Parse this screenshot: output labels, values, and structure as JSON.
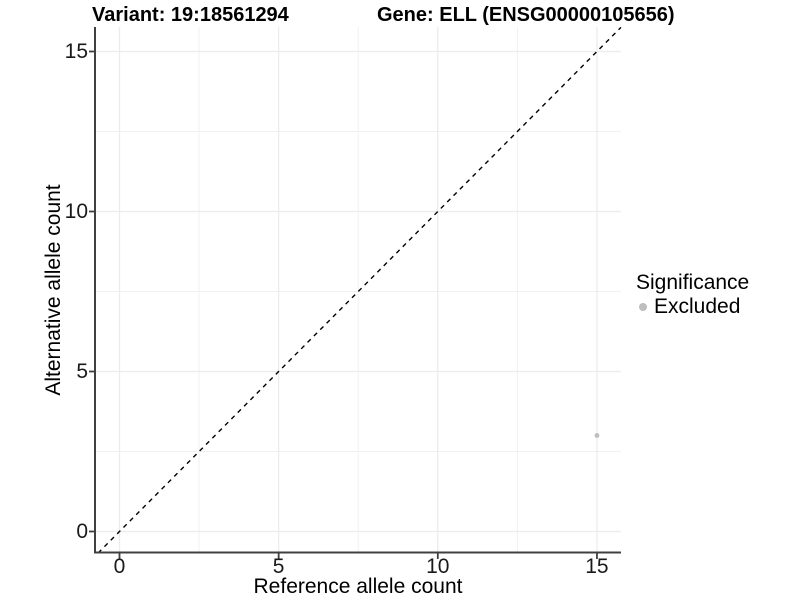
{
  "title": {
    "variant": "Variant: 19:18561294",
    "gene": "Gene: ELL (ENSG00000105656)"
  },
  "axes": {
    "x": {
      "label": "Reference allele count",
      "ticks": [
        0,
        5,
        10,
        15
      ],
      "tick_labels": [
        "0",
        "5",
        "10",
        "15"
      ],
      "minor_ticks": [
        2.5,
        7.5,
        12.5
      ]
    },
    "y": {
      "label": "Alternative allele count",
      "ticks": [
        0,
        5,
        10,
        15
      ],
      "tick_labels": [
        "0",
        "5",
        "10",
        "15"
      ],
      "minor_ticks": [
        2.5,
        7.5,
        12.5
      ]
    }
  },
  "legend": {
    "title": "Significance",
    "items": [
      {
        "label": "Excluded",
        "color": "#bebebe"
      }
    ]
  },
  "colors": {
    "axis_line": "#404040",
    "tick_mark": "#404040",
    "grid_major": "#ececec",
    "grid_minor": "#f1f1f1",
    "dashed_line": "#000000",
    "point": "#bebebe"
  },
  "chart_data": {
    "type": "scatter",
    "title": "Variant: 19:18561294   Gene: ELL (ENSG00000105656)",
    "xlabel": "Reference allele count",
    "ylabel": "Alternative allele count",
    "xlim": [
      -0.75,
      15.75
    ],
    "ylim": [
      -0.75,
      15.75
    ],
    "xticks": [
      0,
      5,
      10,
      15
    ],
    "yticks": [
      0,
      5,
      10,
      15
    ],
    "grid": true,
    "legend_position": "right",
    "legend_title": "Significance",
    "series": [
      {
        "name": "Excluded",
        "color": "#bebebe",
        "points": [
          {
            "x": 15,
            "y": 3
          }
        ]
      }
    ],
    "reference_line": {
      "kind": "identity y=x",
      "style": "dashed",
      "color": "#000000"
    }
  }
}
